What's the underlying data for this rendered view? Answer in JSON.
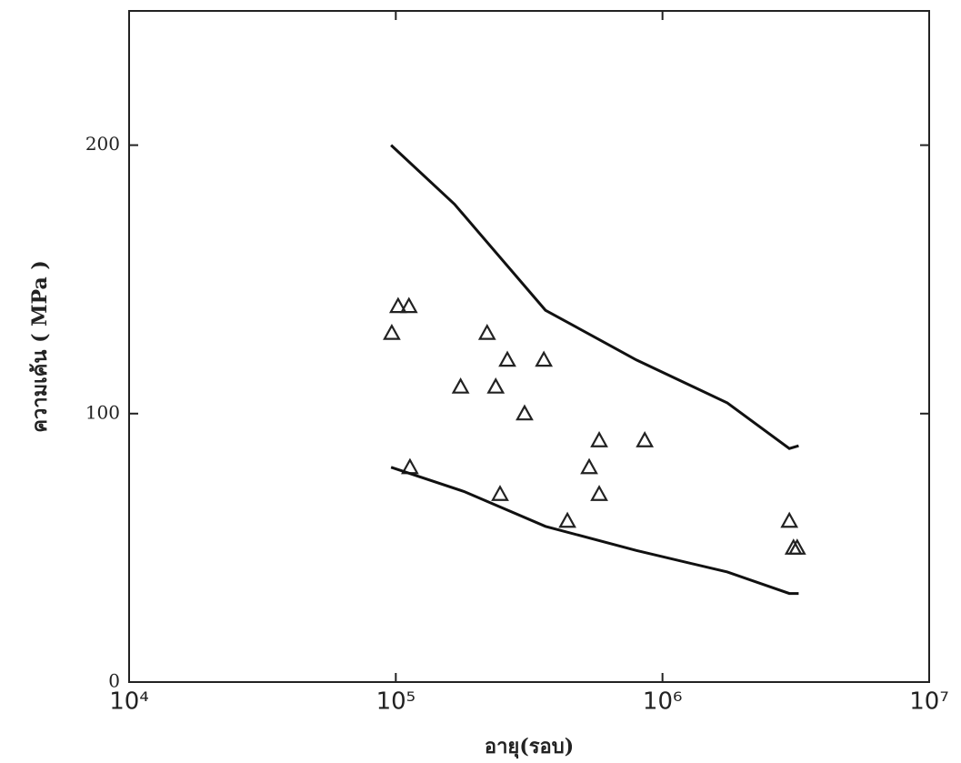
{
  "chart_data": {
    "type": "scatter",
    "xlabel": "อายุ(รอบ)",
    "ylabel": "ความเค้น ( MPa )",
    "xlog": true,
    "xlim": [
      10000,
      10000000
    ],
    "xticks": [
      {
        "value": 10000,
        "label": "10⁴"
      },
      {
        "value": 100000,
        "label": "10⁵"
      },
      {
        "value": 1000000,
        "label": "10⁶"
      },
      {
        "value": 10000000,
        "label": "10⁷"
      }
    ],
    "ylim": [
      0,
      250
    ],
    "yticks": [
      0,
      100,
      200
    ],
    "series": [
      {
        "type": "scatter",
        "marker": "triangle",
        "color": "#222",
        "x": [
          96600,
          102000,
          112000,
          113000,
          175000,
          220000,
          237000,
          262000,
          246000,
          304000,
          359000,
          440000,
          531000,
          579000,
          579000,
          858000,
          2990000,
          3100000,
          3200000
        ],
        "values": [
          130,
          140,
          140,
          80,
          110,
          130,
          110,
          120,
          70,
          100,
          120,
          60,
          80,
          90,
          70,
          90,
          60,
          50,
          50
        ]
      },
      {
        "type": "line",
        "color": "#111",
        "x": [
          96000,
          166000,
          364000,
          798000,
          1750000,
          2990000,
          3240000
        ],
        "values": [
          200,
          178,
          138.5,
          120,
          104,
          87,
          88
        ]
      },
      {
        "type": "line",
        "color": "#111",
        "x": [
          96000,
          180000,
          364000,
          798000,
          1750000,
          2990000,
          3240000
        ],
        "values": [
          80,
          71,
          58,
          49,
          41,
          33,
          33
        ]
      }
    ]
  }
}
